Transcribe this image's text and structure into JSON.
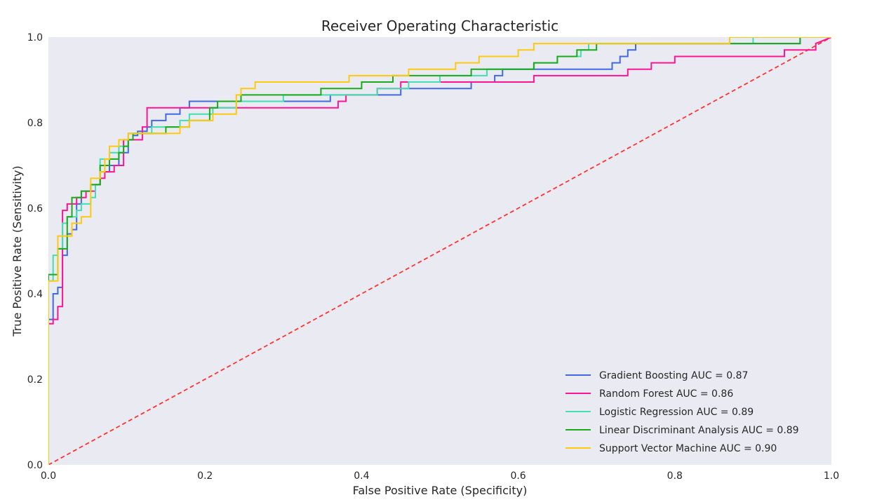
{
  "chart_data": {
    "type": "line",
    "title": "Receiver Operating Characteristic",
    "xlabel": "False Positive Rate (Specificity)",
    "ylabel": "True Positive Rate (Sensitivity)",
    "xlim": [
      0,
      1
    ],
    "ylim": [
      0,
      1
    ],
    "xticks": [
      "0.0",
      "0.2",
      "0.4",
      "0.6",
      "0.8",
      "1.0"
    ],
    "yticks": [
      "0.0",
      "0.2",
      "0.4",
      "0.6",
      "0.8",
      "1.0"
    ],
    "grid": false,
    "background": "#eaeaf2",
    "legend_position": "bottom-right",
    "series": [
      {
        "name": "Gradient Boosting AUC = 0.87",
        "color": "#4169e1",
        "x": [
          0,
          0,
          0.006,
          0.006,
          0.012,
          0.012,
          0.018,
          0.018,
          0.024,
          0.024,
          0.03,
          0.03,
          0.036,
          0.036,
          0.042,
          0.042,
          0.054,
          0.054,
          0.066,
          0.066,
          0.078,
          0.078,
          0.09,
          0.09,
          0.102,
          0.102,
          0.108,
          0.108,
          0.114,
          0.114,
          0.126,
          0.126,
          0.132,
          0.132,
          0.15,
          0.15,
          0.168,
          0.168,
          0.18,
          0.18,
          0.24,
          0.24,
          0.36,
          0.36,
          0.42,
          0.42,
          0.45,
          0.45,
          0.54,
          0.54,
          0.57,
          0.57,
          0.58,
          0.58,
          0.72,
          0.72,
          0.73,
          0.73,
          0.74,
          0.74,
          0.75,
          0.75,
          0.76,
          0.76,
          0.96,
          0.96,
          1
        ],
        "y": [
          0,
          0.34,
          0.34,
          0.4,
          0.4,
          0.415,
          0.415,
          0.49,
          0.49,
          0.54,
          0.54,
          0.55,
          0.55,
          0.61,
          0.61,
          0.64,
          0.64,
          0.655,
          0.655,
          0.685,
          0.685,
          0.7,
          0.7,
          0.73,
          0.73,
          0.76,
          0.76,
          0.77,
          0.77,
          0.78,
          0.78,
          0.79,
          0.79,
          0.805,
          0.805,
          0.82,
          0.82,
          0.835,
          0.835,
          0.85,
          0.85,
          0.85,
          0.85,
          0.865,
          0.865,
          0.865,
          0.865,
          0.88,
          0.88,
          0.895,
          0.895,
          0.91,
          0.91,
          0.925,
          0.925,
          0.94,
          0.94,
          0.955,
          0.955,
          0.97,
          0.97,
          0.985,
          0.985,
          0.985,
          0.985,
          1.0,
          1.0
        ]
      },
      {
        "name": "Random Forest AUC = 0.86",
        "color": "#ff1493",
        "x": [
          0,
          0,
          0.006,
          0.006,
          0.012,
          0.012,
          0.018,
          0.018,
          0.024,
          0.024,
          0.036,
          0.036,
          0.048,
          0.048,
          0.06,
          0.06,
          0.066,
          0.066,
          0.072,
          0.072,
          0.084,
          0.084,
          0.096,
          0.096,
          0.12,
          0.12,
          0.126,
          0.126,
          0.132,
          0.132,
          0.216,
          0.216,
          0.36,
          0.36,
          0.37,
          0.37,
          0.38,
          0.38,
          0.42,
          0.42,
          0.44,
          0.44,
          0.45,
          0.45,
          0.62,
          0.62,
          0.74,
          0.74,
          0.75,
          0.75,
          0.77,
          0.77,
          0.8,
          0.8,
          0.86,
          0.86,
          0.94,
          0.94,
          0.98,
          0.98,
          1
        ],
        "y": [
          0,
          0.33,
          0.33,
          0.34,
          0.34,
          0.37,
          0.37,
          0.595,
          0.595,
          0.61,
          0.61,
          0.625,
          0.625,
          0.64,
          0.64,
          0.655,
          0.655,
          0.67,
          0.67,
          0.685,
          0.685,
          0.7,
          0.7,
          0.76,
          0.76,
          0.79,
          0.79,
          0.835,
          0.835,
          0.835,
          0.835,
          0.835,
          0.835,
          0.835,
          0.835,
          0.85,
          0.85,
          0.865,
          0.865,
          0.88,
          0.88,
          0.88,
          0.88,
          0.895,
          0.895,
          0.91,
          0.91,
          0.925,
          0.925,
          0.925,
          0.925,
          0.94,
          0.94,
          0.955,
          0.955,
          0.955,
          0.955,
          0.97,
          0.97,
          0.985,
          1.0
        ]
      },
      {
        "name": "Logistic Regression AUC = 0.89",
        "color": "#40e0b0",
        "x": [
          0,
          0,
          0.006,
          0.006,
          0.012,
          0.012,
          0.018,
          0.018,
          0.024,
          0.024,
          0.036,
          0.036,
          0.042,
          0.042,
          0.054,
          0.054,
          0.06,
          0.06,
          0.066,
          0.066,
          0.078,
          0.078,
          0.09,
          0.09,
          0.102,
          0.102,
          0.132,
          0.132,
          0.168,
          0.168,
          0.18,
          0.18,
          0.21,
          0.21,
          0.24,
          0.24,
          0.3,
          0.3,
          0.42,
          0.42,
          0.46,
          0.46,
          0.5,
          0.5,
          0.56,
          0.56,
          0.62,
          0.62,
          0.65,
          0.65,
          0.68,
          0.68,
          0.69,
          0.69,
          0.7,
          0.7,
          0.88,
          0.88,
          0.9,
          0.9,
          0.96,
          0.96,
          1
        ],
        "y": [
          0,
          0.43,
          0.43,
          0.49,
          0.49,
          0.505,
          0.505,
          0.565,
          0.565,
          0.58,
          0.58,
          0.595,
          0.595,
          0.61,
          0.61,
          0.625,
          0.625,
          0.655,
          0.655,
          0.715,
          0.715,
          0.73,
          0.73,
          0.745,
          0.745,
          0.775,
          0.775,
          0.79,
          0.79,
          0.805,
          0.805,
          0.82,
          0.82,
          0.835,
          0.835,
          0.85,
          0.85,
          0.865,
          0.865,
          0.88,
          0.88,
          0.895,
          0.895,
          0.91,
          0.91,
          0.925,
          0.925,
          0.94,
          0.94,
          0.955,
          0.955,
          0.97,
          0.97,
          0.985,
          0.985,
          0.985,
          0.985,
          0.985,
          0.985,
          1.0,
          1.0,
          1.0,
          1.0
        ]
      },
      {
        "name": "Linear Discriminant Analysis AUC = 0.89",
        "color": "#1aaa1a",
        "x": [
          0,
          0,
          0.006,
          0.006,
          0.012,
          0.012,
          0.024,
          0.024,
          0.03,
          0.03,
          0.042,
          0.042,
          0.054,
          0.054,
          0.066,
          0.066,
          0.078,
          0.078,
          0.09,
          0.09,
          0.096,
          0.096,
          0.102,
          0.102,
          0.108,
          0.108,
          0.114,
          0.114,
          0.15,
          0.15,
          0.18,
          0.18,
          0.206,
          0.206,
          0.216,
          0.216,
          0.246,
          0.246,
          0.348,
          0.348,
          0.4,
          0.4,
          0.44,
          0.44,
          0.54,
          0.54,
          0.62,
          0.62,
          0.65,
          0.65,
          0.675,
          0.675,
          0.7,
          0.7,
          0.96,
          0.96,
          1
        ],
        "y": [
          0,
          0.445,
          0.445,
          0.445,
          0.445,
          0.505,
          0.505,
          0.58,
          0.58,
          0.625,
          0.625,
          0.64,
          0.64,
          0.655,
          0.655,
          0.7,
          0.7,
          0.715,
          0.715,
          0.73,
          0.73,
          0.745,
          0.745,
          0.76,
          0.76,
          0.775,
          0.775,
          0.775,
          0.775,
          0.79,
          0.79,
          0.805,
          0.805,
          0.835,
          0.835,
          0.85,
          0.85,
          0.865,
          0.865,
          0.88,
          0.88,
          0.895,
          0.895,
          0.91,
          0.91,
          0.925,
          0.925,
          0.94,
          0.94,
          0.955,
          0.955,
          0.97,
          0.97,
          0.985,
          0.985,
          1.0,
          1.0
        ]
      },
      {
        "name": "Support Vector Machine AUC = 0.90",
        "color": "#ffc90e",
        "x": [
          0,
          0,
          0.006,
          0.006,
          0.012,
          0.012,
          0.03,
          0.03,
          0.042,
          0.042,
          0.054,
          0.054,
          0.066,
          0.066,
          0.072,
          0.072,
          0.078,
          0.078,
          0.09,
          0.09,
          0.102,
          0.102,
          0.168,
          0.168,
          0.18,
          0.18,
          0.21,
          0.21,
          0.24,
          0.24,
          0.246,
          0.246,
          0.264,
          0.264,
          0.384,
          0.384,
          0.42,
          0.42,
          0.46,
          0.46,
          0.52,
          0.52,
          0.55,
          0.55,
          0.6,
          0.6,
          0.62,
          0.62,
          0.64,
          0.64,
          0.87,
          0.87,
          0.9,
          0.9,
          0.95,
          0.95,
          0.99,
          1
        ],
        "y": [
          0,
          0.43,
          0.43,
          0.43,
          0.43,
          0.535,
          0.535,
          0.565,
          0.565,
          0.58,
          0.58,
          0.67,
          0.67,
          0.685,
          0.685,
          0.715,
          0.715,
          0.745,
          0.745,
          0.76,
          0.76,
          0.775,
          0.775,
          0.79,
          0.79,
          0.805,
          0.805,
          0.82,
          0.82,
          0.865,
          0.865,
          0.88,
          0.88,
          0.895,
          0.895,
          0.91,
          0.91,
          0.91,
          0.91,
          0.925,
          0.925,
          0.94,
          0.94,
          0.955,
          0.955,
          0.97,
          0.97,
          0.985,
          0.985,
          0.985,
          0.985,
          1.0,
          1.0,
          1.0,
          1.0,
          1.0,
          1.0,
          1.0
        ]
      }
    ],
    "reference_line": {
      "x": [
        0,
        1
      ],
      "y": [
        0,
        1
      ],
      "color": "#ff3333",
      "style": "dashed"
    }
  }
}
